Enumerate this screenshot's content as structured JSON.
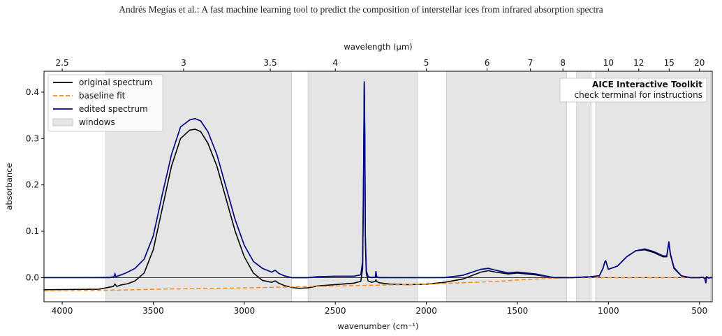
{
  "header": {
    "running_title": "Andrés Megías et al.: A fast machine learning tool to predict the composition of interstellar ices from infrared absorption spectra"
  },
  "colors": {
    "original_spectrum": "#000000",
    "baseline_fit": "#ff8c1a",
    "edited_spectrum": "#00008b",
    "windows_fill": "#e5e5e5",
    "windows_edge": "#c8c8c8",
    "ghost_teal": "#7fb3a6",
    "ghost_grey": "#c9d3d3"
  },
  "chart_data": {
    "type": "line",
    "xlabel": "wavenumber (cm⁻¹)",
    "ylabel": "absorbance",
    "top_xlabel": "wavelength (µm)",
    "xlim": [
      4100,
      430
    ],
    "ylim": [
      -0.052,
      0.445
    ],
    "x_ticks": [
      4000,
      3500,
      3000,
      2500,
      2000,
      1500,
      1000,
      500
    ],
    "x_tick_labels": [
      "4000",
      "3500",
      "3000",
      "2500",
      "2000",
      "1500",
      "1000",
      "500"
    ],
    "y_ticks": [
      0.0,
      0.1,
      0.2,
      0.3,
      0.4
    ],
    "y_tick_labels": [
      "0.0",
      "0.1",
      "0.2",
      "0.3",
      "0.4"
    ],
    "top_ticks_um": [
      2.5,
      3,
      3.5,
      4,
      5,
      6,
      7,
      8,
      10,
      12,
      15,
      20
    ],
    "top_tick_labels": [
      "2.5",
      "3",
      "3.5",
      "4",
      "5",
      "6",
      "7",
      "8",
      "10",
      "12",
      "15",
      "20"
    ],
    "legend": {
      "placement": "top-left",
      "entries": [
        "original spectrum",
        "baseline fit",
        "edited spectrum",
        "windows"
      ]
    },
    "annotation": {
      "placement": "top-right",
      "title": "AICE Interactive Toolkit",
      "subtitle": "check terminal for instructions"
    },
    "windows": [
      [
        3760,
        2740
      ],
      [
        2650,
        2050
      ],
      [
        1890,
        1230
      ],
      [
        1175,
        1095
      ],
      [
        1070,
        440
      ]
    ],
    "series": [
      {
        "name": "original spectrum",
        "x": [
          4100,
          3800,
          3760,
          3720,
          3710,
          3700,
          3680,
          3640,
          3600,
          3550,
          3500,
          3450,
          3400,
          3350,
          3300,
          3270,
          3240,
          3200,
          3150,
          3100,
          3050,
          3000,
          2950,
          2900,
          2850,
          2830,
          2810,
          2780,
          2740,
          2700,
          2650,
          2600,
          2500,
          2400,
          2360,
          2350,
          2345,
          2341,
          2338,
          2335,
          2330,
          2320,
          2300,
          2280,
          2277,
          2273,
          2260,
          2200,
          2100,
          2000,
          1900,
          1800,
          1700,
          1660,
          1620,
          1550,
          1500,
          1450,
          1400,
          1350,
          1300,
          1250,
          1200,
          1100,
          1050,
          1030,
          1020,
          1015,
          1010,
          1000,
          950,
          900,
          850,
          800,
          750,
          700,
          680,
          668,
          660,
          640,
          600,
          550,
          500,
          480,
          470,
          460,
          450,
          440,
          430
        ],
        "values": [
          -0.026,
          -0.025,
          -0.022,
          -0.019,
          -0.014,
          -0.019,
          -0.016,
          -0.013,
          -0.007,
          0.01,
          0.06,
          0.15,
          0.24,
          0.3,
          0.318,
          0.32,
          0.315,
          0.29,
          0.24,
          0.17,
          0.1,
          0.045,
          0.01,
          -0.006,
          -0.01,
          -0.007,
          -0.012,
          -0.017,
          -0.021,
          -0.023,
          -0.022,
          -0.018,
          -0.015,
          -0.012,
          -0.008,
          0.02,
          0.2,
          0.42,
          0.3,
          0.08,
          0.01,
          -0.007,
          -0.01,
          -0.008,
          -0.005,
          -0.008,
          -0.011,
          -0.014,
          -0.015,
          -0.014,
          -0.01,
          -0.003,
          0.012,
          0.015,
          0.012,
          0.008,
          0.01,
          0.008,
          0.006,
          0.003,
          0.0,
          0.0,
          0.0,
          0.002,
          0.004,
          0.02,
          0.034,
          0.036,
          0.03,
          0.018,
          0.025,
          0.045,
          0.058,
          0.06,
          0.054,
          0.045,
          0.045,
          0.075,
          0.05,
          0.02,
          0.004,
          0.0,
          0.0,
          0.001,
          -0.002,
          0.002,
          -0.001,
          0.0,
          0.0
        ]
      },
      {
        "name": "baseline fit",
        "x": [
          4100,
          3700,
          3500,
          3000,
          2500,
          2000,
          1800,
          1600,
          1500,
          1400,
          1300,
          1200,
          1000,
          800,
          600,
          430
        ],
        "values": [
          -0.028,
          -0.027,
          -0.025,
          -0.022,
          -0.018,
          -0.014,
          -0.011,
          -0.008,
          -0.005,
          -0.003,
          -0.001,
          0.0,
          0.0,
          0.0,
          0.0,
          0.0
        ]
      },
      {
        "name": "edited spectrum",
        "x": [
          4100,
          3800,
          3740,
          3715,
          3710,
          3705,
          3690,
          3650,
          3600,
          3550,
          3500,
          3450,
          3400,
          3350,
          3300,
          3270,
          3240,
          3200,
          3150,
          3100,
          3050,
          3000,
          2950,
          2900,
          2850,
          2830,
          2810,
          2780,
          2740,
          2700,
          2650,
          2600,
          2500,
          2400,
          2360,
          2350,
          2345,
          2341,
          2338,
          2335,
          2330,
          2320,
          2300,
          2280,
          2277,
          2273,
          2260,
          2200,
          2100,
          2000,
          1900,
          1800,
          1700,
          1660,
          1620,
          1550,
          1500,
          1450,
          1400,
          1350,
          1300,
          1250,
          1200,
          1100,
          1050,
          1030,
          1020,
          1015,
          1010,
          1000,
          950,
          900,
          850,
          800,
          750,
          700,
          680,
          668,
          660,
          640,
          600,
          550,
          500,
          480,
          470,
          465,
          460,
          450,
          440,
          430
        ],
        "values": [
          0.0,
          0.0,
          0.0,
          0.002,
          0.008,
          0.002,
          0.004,
          0.01,
          0.02,
          0.04,
          0.09,
          0.18,
          0.265,
          0.325,
          0.34,
          0.343,
          0.338,
          0.315,
          0.265,
          0.195,
          0.125,
          0.07,
          0.035,
          0.02,
          0.012,
          0.016,
          0.009,
          0.004,
          0.0,
          0.0,
          0.0,
          0.002,
          0.003,
          0.003,
          0.006,
          0.035,
          0.22,
          0.423,
          0.31,
          0.09,
          0.015,
          0.002,
          0.0,
          0.001,
          0.014,
          0.002,
          0.0,
          0.0,
          0.0,
          0.0,
          0.0,
          0.005,
          0.018,
          0.02,
          0.016,
          0.01,
          0.012,
          0.01,
          0.008,
          0.004,
          0.0,
          0.0,
          0.0,
          0.002,
          0.004,
          0.02,
          0.034,
          0.036,
          0.03,
          0.018,
          0.025,
          0.045,
          0.058,
          0.062,
          0.056,
          0.047,
          0.047,
          0.078,
          0.052,
          0.022,
          0.004,
          0.0,
          0.0,
          0.001,
          -0.003,
          -0.012,
          0.002,
          -0.001,
          0.0,
          0.0
        ]
      }
    ]
  }
}
